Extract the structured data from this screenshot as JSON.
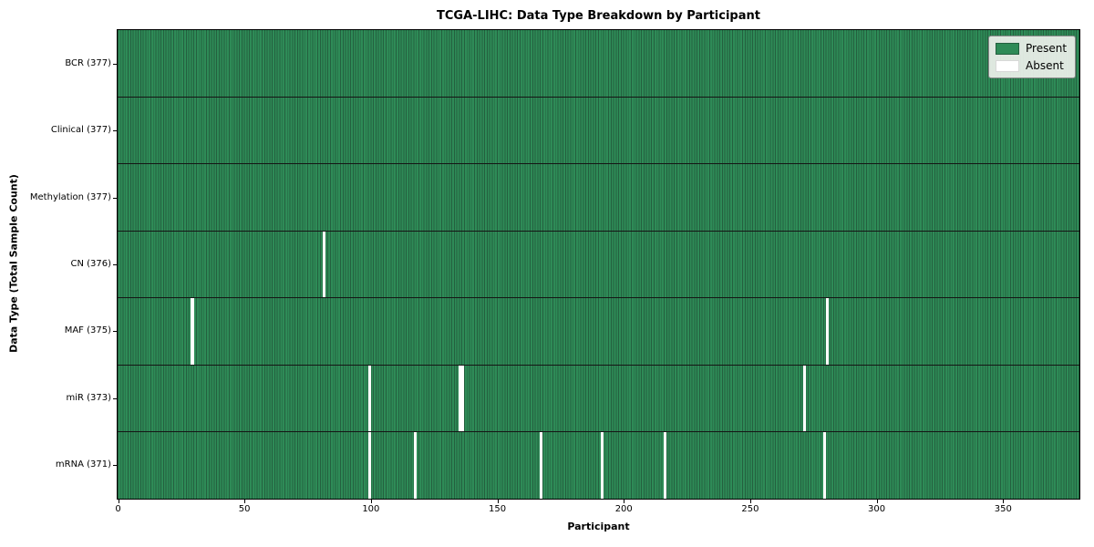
{
  "chart_data": {
    "type": "heatmap",
    "title": "TCGA-LIHC: Data Type Breakdown by Participant",
    "xlabel": "Participant",
    "ylabel": "Data Type (Total Sample Count)",
    "x_ticks": [
      0,
      50,
      100,
      150,
      200,
      250,
      300,
      350
    ],
    "axis_max": 380,
    "n_participants": 377,
    "legend": [
      {
        "label": "Present",
        "color": "#2e8b57"
      },
      {
        "label": "Absent",
        "color": "#ffffff"
      }
    ],
    "rows": [
      {
        "label": "BCR (377)",
        "name": "BCR",
        "total": 377,
        "absent_participants": []
      },
      {
        "label": "Clinical (377)",
        "name": "Clinical",
        "total": 377,
        "absent_participants": []
      },
      {
        "label": "Methylation (377)",
        "name": "Methylation",
        "total": 377,
        "absent_participants": []
      },
      {
        "label": "CN (376)",
        "name": "CN",
        "total": 376,
        "absent_participants": [
          81
        ]
      },
      {
        "label": "MAF (375)",
        "name": "MAF",
        "total": 375,
        "absent_participants": [
          29,
          280
        ]
      },
      {
        "label": "miR (373)",
        "name": "miR",
        "total": 373,
        "absent_participants": [
          99,
          135,
          136,
          271
        ]
      },
      {
        "label": "mRNA (371)",
        "name": "mRNA",
        "total": 371,
        "absent_participants": [
          99,
          117,
          167,
          191,
          216,
          279
        ]
      }
    ],
    "colors": {
      "present": "#2e8b57",
      "absent": "#ffffff",
      "cell_edge": "#24603f",
      "row_divider": "#151515",
      "spine": "#000000",
      "legend_bg": "#eef1ec",
      "legend_border": "#8a8a8a"
    }
  }
}
